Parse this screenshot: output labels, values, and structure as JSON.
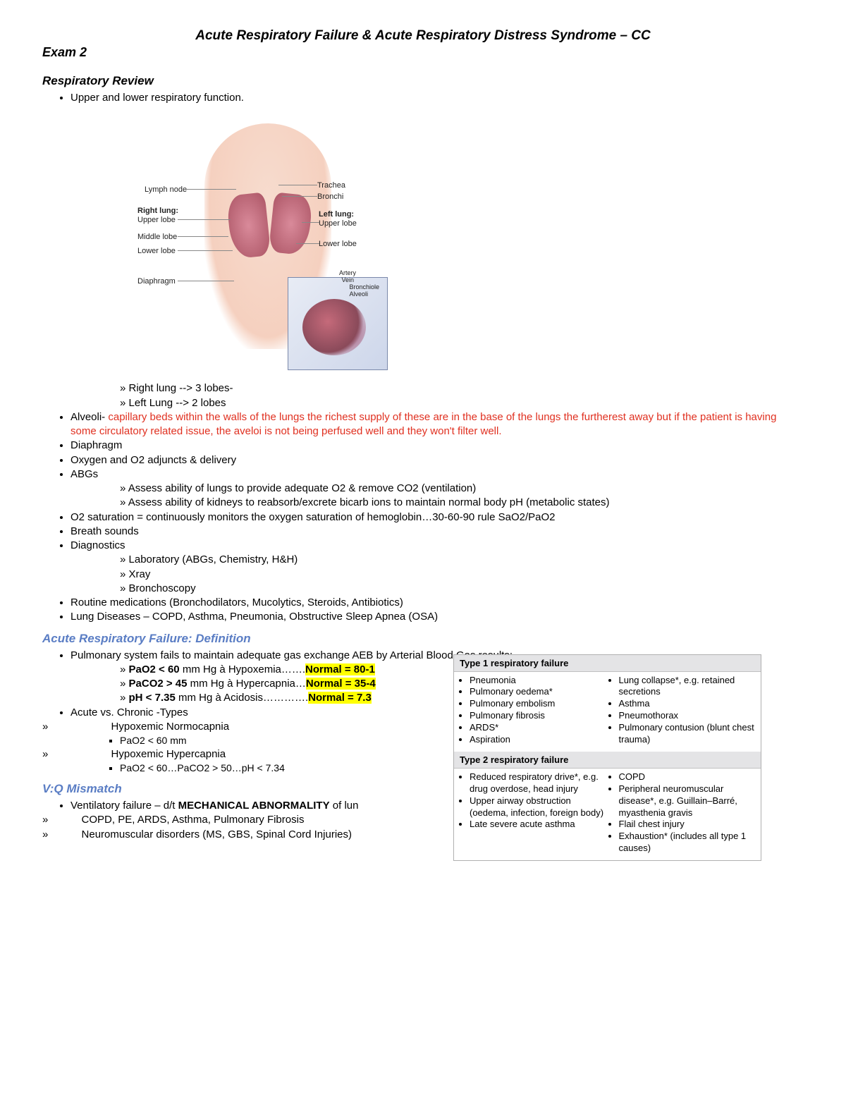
{
  "header": {
    "title": "Acute Respiratory Failure & Acute Respiratory Distress Syndrome – CC",
    "exam": "Exam 2"
  },
  "respreview": {
    "heading": "Respiratory Review",
    "b1": "Upper and lower respiratory function.",
    "fig": {
      "lymph": "Lymph node",
      "trachea": "Trachea",
      "bronchi": "Bronchi",
      "rightlung": "Right lung:",
      "rupper": "Upper lobe",
      "rmid": "Middle lobe",
      "rlow": "Lower lobe",
      "leftlung": "Left lung:",
      "lupper": "Upper lobe",
      "llow": "Lower lobe",
      "diaphragm": "Diaphragm",
      "artery": "Artery",
      "vein": "Vein",
      "bronchiole": "Bronchiole",
      "alveoli": "Alveoli"
    },
    "sub1a": "Right lung --> 3 lobes-",
    "sub1b": "Left Lung --> 2 lobes",
    "alveoli_lead": "Alveoli- ",
    "alveoli_red": "capillary beds within the walls of the lungs the richest supply of these are in the base of the lungs the furtherest away but if the patient is having some circulatory related issue, the aveloi is not being perfused well and they won't filter well.",
    "b_diaphragm": "Diaphragm",
    "b_o2": "Oxygen and O2 adjuncts & delivery",
    "b_abg": "ABGs",
    "abg_s1": "Assess ability of lungs to provide adequate O2 & remove CO2 (ventilation)",
    "abg_s2": "Assess ability of kidneys to reabsorb/excrete bicarb ions to maintain normal body pH (metabolic states)",
    "b_o2sat": "O2 saturation = continuously monitors the oxygen saturation of hemoglobin…30-60-90 rule SaO2/PaO2",
    "b_breath": "Breath sounds",
    "b_diag": "Diagnostics",
    "diag_s1": "Laboratory (ABGs, Chemistry, H&H)",
    "diag_s2": "Xray",
    "diag_s3": "Bronchoscopy",
    "b_meds": "Routine medications (Bronchodilators, Mucolytics, Steroids, Antibiotics)",
    "b_lung": "Lung Diseases – COPD, Asthma, Pneumonia, Obstructive Sleep Apnea (OSA)"
  },
  "arf": {
    "heading": "Acute Respiratory Failure: Definition",
    "b1": "Pulmonary system fails to maintain adequate gas exchange AEB by Arterial Blood Gas results:",
    "s1_b": "PaO2 < 60",
    "s1_t": " mm Hg à Hypoxemia…….",
    "s1_h": "Normal = 80-1",
    "s2_b": "PaCO2 > 45",
    "s2_t": " mm Hg à Hypercapnia…",
    "s2_h": "Normal = 35-4",
    "s3_b": "pH < 7.35",
    "s3_t": " mm Hg à Acidosis………….",
    "s3_h": "Normal = 7.3",
    "b2": "Acute vs. Chronic -Types",
    "type1": "Hypoxemic Normocapnia",
    "type1_s": "PaO2 < 60 mm",
    "type2": "Hypoxemic Hypercapnia",
    "type2_s": "PaO2 < 60…PaCO2 > 50…pH < 7.34"
  },
  "sidetable": {
    "h1": "Type 1 respiratory failure",
    "c1a": [
      "Pneumonia",
      "Pulmonary oedema*",
      "Pulmonary embolism",
      "Pulmonary fibrosis",
      "ARDS*",
      "Aspiration"
    ],
    "c1b": [
      "Lung collapse*, e.g. retained secretions",
      "Asthma",
      "Pneumothorax",
      "Pulmonary contusion (blunt chest trauma)"
    ],
    "h2": "Type 2 respiratory failure",
    "c2a": [
      "Reduced respiratory drive*, e.g. drug overdose, head injury",
      "Upper airway obstruction (oedema, infection, foreign body)",
      "Late severe acute asthma"
    ],
    "c2b": [
      "COPD",
      "Peripheral neuromuscular disease*, e.g. Guillain–Barré, myasthenia gravis",
      "Flail chest injury",
      "Exhaustion* (includes all type 1 causes)"
    ]
  },
  "vq": {
    "heading": "V:Q Mismatch",
    "b1a": "Ventilatory failure – d/t ",
    "b1b": "MECHANICAL ABNORMALITY",
    "b1c": " of lun",
    "s1": "COPD, PE, ARDS, Asthma, Pulmonary Fibrosis",
    "s2": "Neuromuscular disorders (MS, GBS, Spinal Cord Injuries)"
  }
}
